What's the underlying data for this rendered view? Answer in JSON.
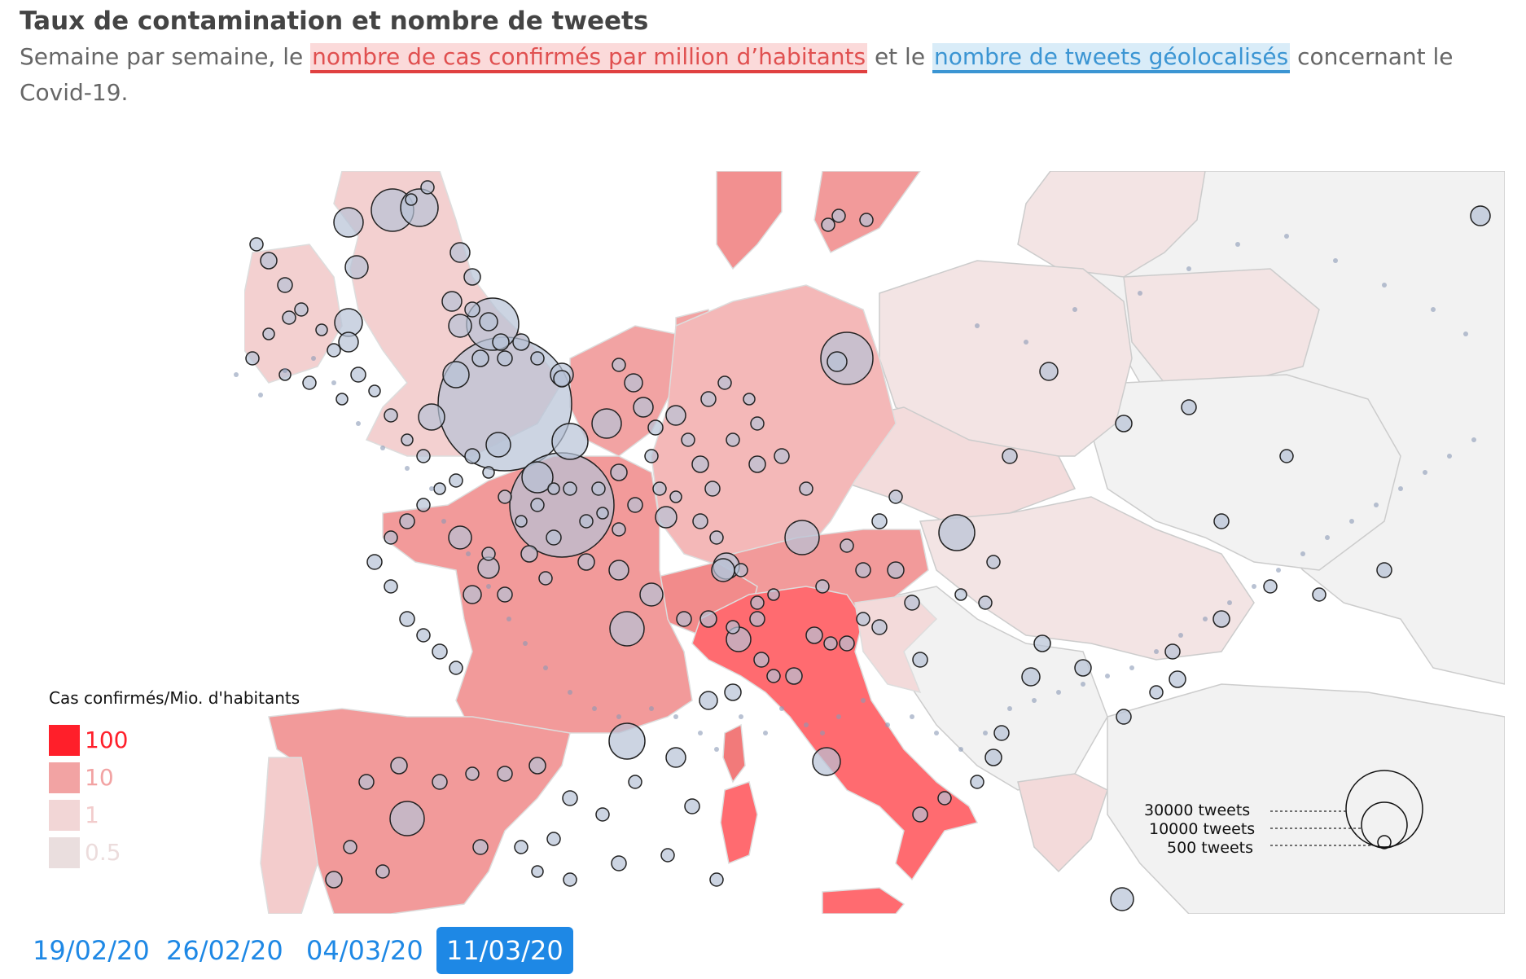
{
  "header": {
    "title": "Taux de contamination et nombre de tweets",
    "subtitle_part1": "Semaine par semaine, le ",
    "subtitle_link_cases": "nombre de cas confirmés par million d’habitants",
    "subtitle_part2": " et le ",
    "subtitle_link_tweets": "nombre de tweets géolocalisés",
    "subtitle_part3": " concernant le Covid-19."
  },
  "colors": {
    "scale_100": "#ff1f2a",
    "scale_10": "#f2a3a3",
    "scale_1": "#f2d6d6",
    "scale_05": "#eadede",
    "no_data": "#f2f2f2",
    "bubble_fill": "#b6c2d6",
    "bubble_stroke": "#222222",
    "active_date": "#1e88e5"
  },
  "color_legend": {
    "title": "Cas confirmés/Mio. d'habitants",
    "items": [
      {
        "label": "100"
      },
      {
        "label": "10"
      },
      {
        "label": "1"
      },
      {
        "label": "0.5"
      }
    ]
  },
  "size_legend": {
    "items": [
      {
        "label": "30000 tweets"
      },
      {
        "label": "10000 tweets"
      },
      {
        "label": "500 tweets"
      }
    ]
  },
  "dates": {
    "items": [
      "19/02/20",
      "26/02/20",
      "04/03/20",
      "11/03/20"
    ],
    "selected": "11/03/20"
  }
}
